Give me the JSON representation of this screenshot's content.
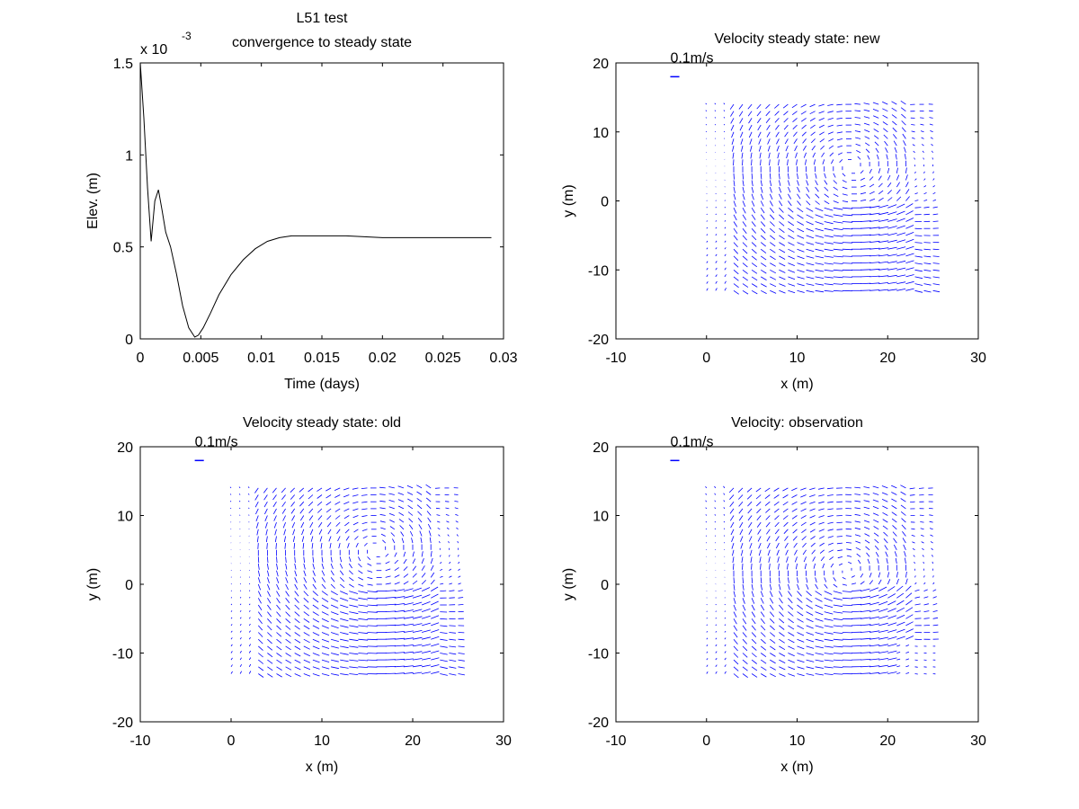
{
  "chart_data": [
    {
      "type": "line",
      "title": "L51 test",
      "subtitle": "convergence to steady state",
      "xlabel": "Time (days)",
      "ylabel": "Elev. (m)",
      "xlim": [
        0,
        0.03
      ],
      "ylim": [
        0,
        0.0015
      ],
      "y_exponent_label": "x 10",
      "y_exponent": "-3",
      "xticks": [
        "0",
        "0.005",
        "0.01",
        "0.015",
        "0.02",
        "0.025",
        "0.03"
      ],
      "yticks": [
        "0",
        "0.5",
        "1",
        "1.5"
      ],
      "grid": false,
      "color": "#000000",
      "series": [
        {
          "name": "elevation",
          "x": [
            0,
            0.0003,
            0.0006,
            0.0009,
            0.0012,
            0.0015,
            0.0018,
            0.0021,
            0.0025,
            0.003,
            0.0035,
            0.004,
            0.0045,
            0.0048,
            0.0052,
            0.0058,
            0.0065,
            0.0075,
            0.0085,
            0.0095,
            0.0105,
            0.0115,
            0.0125,
            0.0135,
            0.015,
            0.017,
            0.02,
            0.025,
            0.029
          ],
          "y": [
            0.0015,
            0.0012,
            0.00082,
            0.00053,
            0.00075,
            0.00081,
            0.0007,
            0.00058,
            0.0005,
            0.00035,
            0.00018,
            6e-05,
            1e-05,
            2e-05,
            6e-05,
            0.00014,
            0.00024,
            0.00035,
            0.00043,
            0.00049,
            0.00053,
            0.00055,
            0.00056,
            0.00056,
            0.00056,
            0.00056,
            0.00055,
            0.00055,
            0.00055
          ]
        }
      ]
    },
    {
      "type": "quiver",
      "title": "Velocity steady state: new",
      "xlabel": "x (m)",
      "ylabel": "y (m)",
      "xlim": [
        -10,
        30
      ],
      "ylim": [
        -20,
        20
      ],
      "xticks": [
        "-10",
        "0",
        "10",
        "20",
        "30"
      ],
      "yticks": [
        "-20",
        "-10",
        "0",
        "10",
        "20"
      ],
      "scale_label": "0.1m/s",
      "color": "#0000ff",
      "field": "new"
    },
    {
      "type": "quiver",
      "title": "Velocity steady state: old",
      "xlabel": "x (m)",
      "ylabel": "y (m)",
      "xlim": [
        -10,
        30
      ],
      "ylim": [
        -20,
        20
      ],
      "xticks": [
        "-10",
        "0",
        "10",
        "20",
        "30"
      ],
      "yticks": [
        "-20",
        "-10",
        "0",
        "10",
        "20"
      ],
      "scale_label": "0.1m/s",
      "color": "#0000ff",
      "field": "old"
    },
    {
      "type": "quiver",
      "title": "Velocity: observation",
      "xlabel": "x (m)",
      "ylabel": "y (m)",
      "xlim": [
        -10,
        30
      ],
      "ylim": [
        -20,
        20
      ],
      "xticks": [
        "-10",
        "0",
        "10",
        "20",
        "30"
      ],
      "yticks": [
        "-20",
        "-10",
        "0",
        "10",
        "20"
      ],
      "scale_label": "0.1m/s",
      "color": "#0000ff",
      "field": "observation"
    }
  ]
}
